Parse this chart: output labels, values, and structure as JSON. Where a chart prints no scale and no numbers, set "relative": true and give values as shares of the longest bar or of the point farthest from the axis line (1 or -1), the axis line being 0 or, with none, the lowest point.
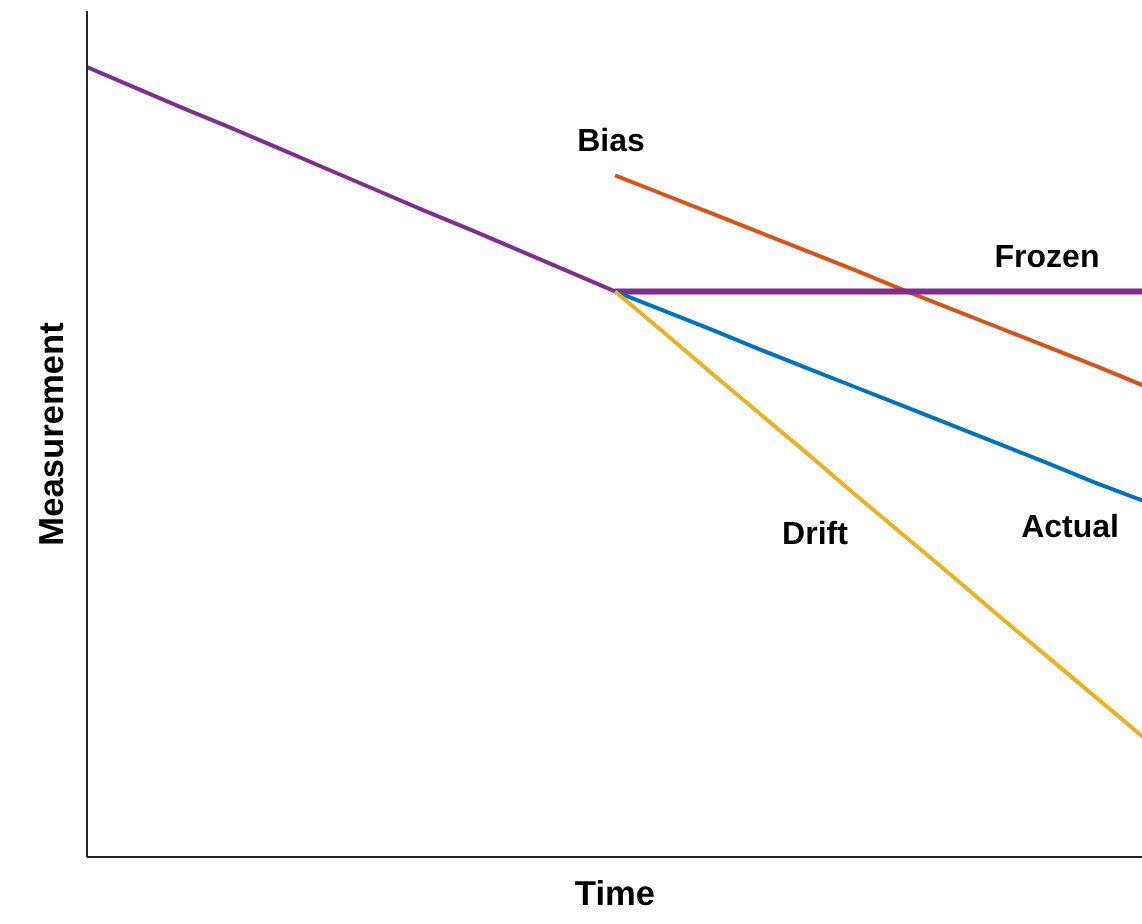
{
  "chart_data": {
    "type": "line",
    "relative": true,
    "xlabel": "Time",
    "ylabel": "Measurement",
    "categories": [
      null,
      null,
      null,
      null,
      null,
      null,
      null,
      null,
      null,
      null,
      null,
      null,
      null,
      null,
      null,
      null,
      null,
      null,
      null,
      null,
      null,
      null,
      null
    ],
    "tick_labels": false,
    "marker": "none",
    "line_style": "solid",
    "series": [
      {
        "color": "#7e2f8e",
        "values": [
          1.0,
          0.974,
          0.948,
          0.923,
          0.897,
          0.871,
          0.845,
          0.819,
          0.794,
          0.768,
          0.742,
          0.716,
          null,
          null,
          null,
          null,
          null,
          null,
          null,
          null,
          null,
          null,
          null
        ]
      },
      {
        "name": "Bias",
        "color": "#d95319",
        "values": [
          null,
          null,
          null,
          null,
          null,
          null,
          null,
          null,
          null,
          null,
          null,
          0.863,
          0.839,
          0.815,
          0.791,
          0.767,
          0.743,
          0.718,
          0.694,
          0.67,
          0.646,
          0.622,
          0.597
        ]
      },
      {
        "name": "Frozen",
        "color": "#7e2f8e",
        "values": [
          null,
          null,
          null,
          null,
          null,
          null,
          null,
          null,
          null,
          null,
          null,
          0.716,
          0.716,
          0.716,
          0.716,
          0.716,
          0.716,
          0.716,
          0.716,
          0.716,
          0.716,
          0.716,
          0.716
        ]
      },
      {
        "name": "Actual",
        "color": "#0072bd",
        "values": [
          null,
          null,
          null,
          null,
          null,
          null,
          null,
          null,
          null,
          null,
          null,
          0.716,
          0.692,
          0.668,
          0.643,
          0.619,
          0.595,
          0.571,
          0.547,
          0.523,
          0.499,
          0.474,
          0.451
        ]
      },
      {
        "name": "Drift",
        "color": "#edb120",
        "values": [
          null,
          null,
          null,
          null,
          null,
          null,
          null,
          null,
          null,
          null,
          null,
          0.716,
          0.665,
          0.613,
          0.562,
          0.511,
          0.459,
          0.408,
          0.357,
          0.305,
          0.254,
          0.203,
          0.152
        ]
      }
    ]
  }
}
